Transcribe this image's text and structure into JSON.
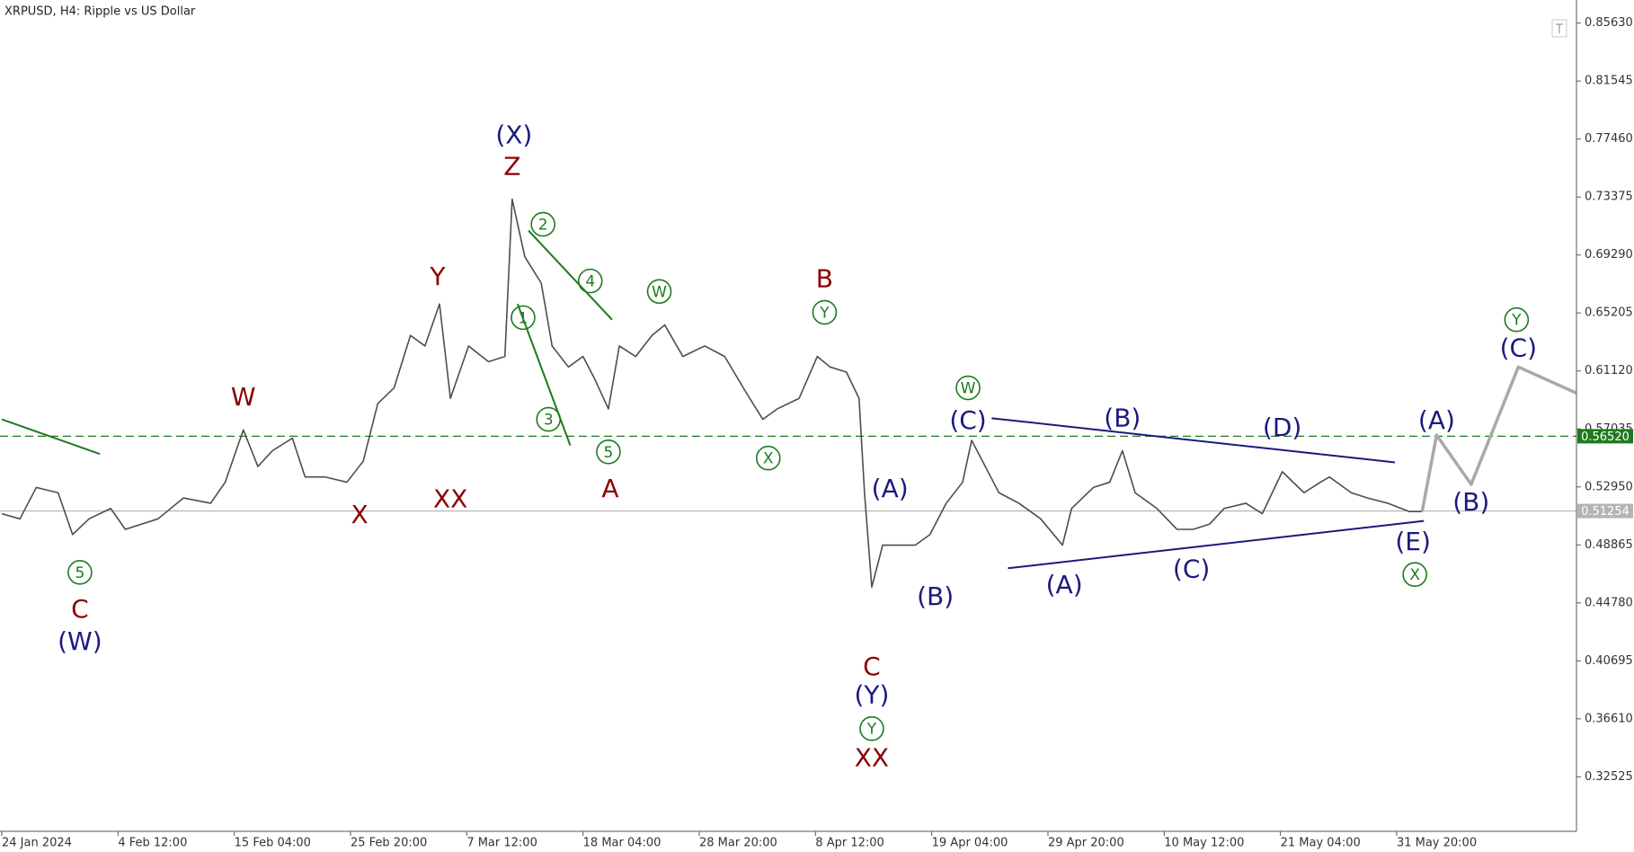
{
  "chart_data": {
    "type": "line",
    "title": "XRPUSD, H4:  Ripple vs US Dollar",
    "xlim": [
      0,
      867
    ],
    "ylim": [
      0.28684,
      0.87255
    ],
    "xticks": [
      {
        "value": 0,
        "label": "24 Jan 2024"
      },
      {
        "value": 64,
        "label": "4 Feb 12:00"
      },
      {
        "value": 128,
        "label": "15 Feb 04:00"
      },
      {
        "value": 192,
        "label": "25 Feb 20:00"
      },
      {
        "value": 256,
        "label": "7 Mar 12:00"
      },
      {
        "value": 320,
        "label": "18 Mar 04:00"
      },
      {
        "value": 384,
        "label": "28 Mar 20:00"
      },
      {
        "value": 448,
        "label": "8 Apr 12:00"
      },
      {
        "value": 512,
        "label": "19 Apr 04:00"
      },
      {
        "value": 576,
        "label": "29 Apr 20:00"
      },
      {
        "value": 640,
        "label": "10 May 12:00"
      },
      {
        "value": 704,
        "label": "21 May 04:00"
      },
      {
        "value": 768,
        "label": "31 May 20:00"
      }
    ],
    "yticks": [
      {
        "value": 0.8563,
        "label": "0.85630"
      },
      {
        "value": 0.81545,
        "label": "0.81545"
      },
      {
        "value": 0.7746,
        "label": "0.77460"
      },
      {
        "value": 0.73375,
        "label": "0.73375"
      },
      {
        "value": 0.6929,
        "label": "0.69290"
      },
      {
        "value": 0.65205,
        "label": "0.65205"
      },
      {
        "value": 0.6112,
        "label": "0.61120"
      },
      {
        "value": 0.57035,
        "label": "0.57035"
      },
      {
        "value": 0.5295,
        "label": "0.52950"
      },
      {
        "value": 0.48865,
        "label": "0.48865"
      },
      {
        "value": 0.4478,
        "label": "0.44780"
      },
      {
        "value": 0.40695,
        "label": "0.40695"
      },
      {
        "value": 0.3661,
        "label": "0.36610"
      },
      {
        "value": 0.32525,
        "label": "0.32525"
      }
    ],
    "series": [
      {
        "color": "#4d4d4d",
        "width": 1.6,
        "x": [
          0,
          10,
          19,
          31,
          39,
          48,
          60,
          68,
          86,
          100,
          115,
          123,
          133,
          141,
          149,
          160,
          167,
          178,
          190,
          199,
          207,
          216,
          225,
          233,
          241,
          247,
          257,
          268,
          277,
          281,
          288,
          297,
          303,
          312,
          320,
          326,
          334,
          340,
          349,
          358,
          365,
          375,
          387,
          398,
          410,
          419,
          427,
          439,
          449,
          456,
          465,
          472,
          475,
          479,
          485,
          494,
          503,
          511,
          520,
          529,
          534,
          540,
          549,
          560,
          572,
          584,
          589,
          601,
          610,
          617,
          624,
          636,
          647,
          656,
          665,
          673,
          685,
          694,
          705,
          717,
          726,
          731,
          743,
          752,
          763,
          775,
          782
        ],
        "values": [
          0.5106,
          0.507,
          0.5291,
          0.5254,
          0.4959,
          0.507,
          0.5143,
          0.4996,
          0.507,
          0.5217,
          0.518,
          0.5328,
          0.5697,
          0.5439,
          0.555,
          0.5638,
          0.5365,
          0.5365,
          0.5328,
          0.5476,
          0.5882,
          0.5993,
          0.6362,
          0.6288,
          0.6584,
          0.5919,
          0.6288,
          0.6177,
          0.6214,
          0.7322,
          0.6916,
          0.6731,
          0.6288,
          0.614,
          0.6214,
          0.6067,
          0.5845,
          0.6288,
          0.6214,
          0.6362,
          0.6436,
          0.6214,
          0.6288,
          0.6214,
          0.5956,
          0.5771,
          0.5845,
          0.5919,
          0.6214,
          0.614,
          0.6104,
          0.5919,
          0.5254,
          0.4589,
          0.4885,
          0.4885,
          0.4885,
          0.4959,
          0.518,
          0.5328,
          0.5623,
          0.5476,
          0.5254,
          0.518,
          0.507,
          0.4885,
          0.5143,
          0.5291,
          0.5328,
          0.555,
          0.5254,
          0.5143,
          0.4996,
          0.4996,
          0.5033,
          0.5143,
          0.518,
          0.5106,
          0.5402,
          0.5254,
          0.5328,
          0.5365,
          0.5254,
          0.5217,
          0.518,
          0.5121,
          0.5121
        ]
      },
      {
        "color": "#a9a9a9",
        "width": 3.5,
        "x": [
          782,
          790,
          809,
          835,
          867
        ],
        "values": [
          0.5121,
          0.566,
          0.5313,
          0.614,
          0.5956
        ]
      }
    ],
    "price_lines": [
      {
        "value": 0.5652,
        "label": "0.56520",
        "color": "#1e7a1e",
        "dashed": true
      },
      {
        "value": 0.51254,
        "label": "0.51254",
        "color": "#b4b4b4",
        "dashed": false
      }
    ],
    "trend_lines": [
      {
        "x": [
          545,
          767
        ],
        "y": [
          0.5779,
          0.5468
        ],
        "color": "#1a1a80"
      },
      {
        "x": [
          554,
          783
        ],
        "y": [
          0.4722,
          0.5055
        ],
        "color": "#1a1a80"
      },
      {
        "x": [
          0,
          54
        ],
        "y": [
          0.5771,
          0.5527
        ],
        "color": "#1e7a1e"
      },
      {
        "x": [
          290,
          336
        ],
        "y": [
          0.7101,
          0.6473
        ],
        "color": "#1e7a1e"
      },
      {
        "x": [
          284,
          313
        ],
        "y": [
          0.6584,
          0.5587
        ],
        "color": "#1e7a1e"
      }
    ],
    "annotations": [
      {
        "text": "(X)",
        "x": 282,
        "y": 0.7765,
        "color": "#1a1a80",
        "circled": false
      },
      {
        "text": "Z",
        "x": 281,
        "y": 0.7544,
        "color": "#8b0000",
        "circled": false
      },
      {
        "text": "2",
        "x": 298,
        "y": 0.7145,
        "color": "#1e7a1e",
        "circled": true
      },
      {
        "text": "4",
        "x": 324,
        "y": 0.6746,
        "color": "#1e7a1e",
        "circled": true
      },
      {
        "text": "W",
        "x": 362,
        "y": 0.6672,
        "color": "#1e7a1e",
        "circled": true
      },
      {
        "text": "1",
        "x": 287,
        "y": 0.6488,
        "color": "#1e7a1e",
        "circled": true
      },
      {
        "text": "3",
        "x": 301,
        "y": 0.5771,
        "color": "#1e7a1e",
        "circled": true
      },
      {
        "text": "5",
        "x": 334,
        "y": 0.5542,
        "color": "#1e7a1e",
        "circled": true
      },
      {
        "text": "A",
        "x": 335,
        "y": 0.5276,
        "color": "#8b0000",
        "circled": false
      },
      {
        "text": "B",
        "x": 453,
        "y": 0.6753,
        "color": "#8b0000",
        "circled": false
      },
      {
        "text": "Y",
        "x": 453,
        "y": 0.6525,
        "color": "#1e7a1e",
        "circled": true
      },
      {
        "text": "X",
        "x": 422,
        "y": 0.5498,
        "color": "#1e7a1e",
        "circled": true
      },
      {
        "text": "Y",
        "x": 240,
        "y": 0.6768,
        "color": "#8b0000",
        "circled": false
      },
      {
        "text": "XX",
        "x": 247,
        "y": 0.5202,
        "color": "#8b0000",
        "circled": false
      },
      {
        "text": "W",
        "x": 133,
        "y": 0.5919,
        "color": "#8b0000",
        "circled": false
      },
      {
        "text": "X",
        "x": 197,
        "y": 0.5092,
        "color": "#8b0000",
        "circled": false
      },
      {
        "text": "5",
        "x": 43,
        "y": 0.4693,
        "color": "#1e7a1e",
        "circled": true
      },
      {
        "text": "C",
        "x": 43,
        "y": 0.4427,
        "color": "#8b0000",
        "circled": false
      },
      {
        "text": "(W)",
        "x": 43,
        "y": 0.4198,
        "color": "#1a1a80",
        "circled": false
      },
      {
        "text": "(A)",
        "x": 489,
        "y": 0.5276,
        "color": "#1a1a80",
        "circled": false
      },
      {
        "text": "(B)",
        "x": 514,
        "y": 0.4516,
        "color": "#1a1a80",
        "circled": false
      },
      {
        "text": "C",
        "x": 479,
        "y": 0.4021,
        "color": "#8b0000",
        "circled": false
      },
      {
        "text": "(Y)",
        "x": 479,
        "y": 0.3821,
        "color": "#1a1a80",
        "circled": false
      },
      {
        "text": "Y",
        "x": 479,
        "y": 0.3592,
        "color": "#1e7a1e",
        "circled": true
      },
      {
        "text": "XX",
        "x": 479,
        "y": 0.3378,
        "color": "#8b0000",
        "circled": false
      },
      {
        "text": "W",
        "x": 532,
        "y": 0.5993,
        "color": "#1e7a1e",
        "circled": true
      },
      {
        "text": "(C)",
        "x": 532,
        "y": 0.5756,
        "color": "#1a1a80",
        "circled": false
      },
      {
        "text": "(A)",
        "x": 585,
        "y": 0.4597,
        "color": "#1a1a80",
        "circled": false
      },
      {
        "text": "(B)",
        "x": 617,
        "y": 0.5771,
        "color": "#1a1a80",
        "circled": false
      },
      {
        "text": "(C)",
        "x": 655,
        "y": 0.4708,
        "color": "#1a1a80",
        "circled": false
      },
      {
        "text": "(D)",
        "x": 705,
        "y": 0.5705,
        "color": "#1a1a80",
        "circled": false
      },
      {
        "text": "(E)",
        "x": 777,
        "y": 0.49,
        "color": "#1a1a80",
        "circled": false
      },
      {
        "text": "X",
        "x": 778,
        "y": 0.4678,
        "color": "#1e7a1e",
        "circled": true
      },
      {
        "text": "(A)",
        "x": 790,
        "y": 0.5756,
        "color": "#1a1a80",
        "circled": false
      },
      {
        "text": "(B)",
        "x": 809,
        "y": 0.518,
        "color": "#1a1a80",
        "circled": false
      },
      {
        "text": "(C)",
        "x": 835,
        "y": 0.6266,
        "color": "#1a1a80",
        "circled": false
      },
      {
        "text": "Y",
        "x": 834,
        "y": 0.6473,
        "color": "#1e7a1e",
        "circled": true
      }
    ]
  }
}
